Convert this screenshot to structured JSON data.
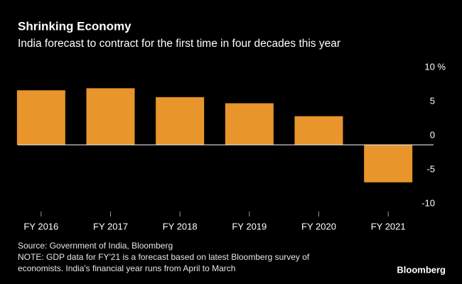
{
  "chart_data": {
    "type": "bar",
    "title": "Shrinking Economy",
    "subtitle": "India forecast to contract for the first time in four decades this year",
    "categories": [
      "FY 2016",
      "FY 2017",
      "FY 2018",
      "FY 2019",
      "FY 2020",
      "FY 2021"
    ],
    "values": [
      8.0,
      8.3,
      7.0,
      6.1,
      4.2,
      -5.5
    ],
    "color": "#e8952b",
    "ylim": [
      -10,
      10
    ],
    "yticks": [
      {
        "value": 10,
        "label": "10 %"
      },
      5,
      0,
      -5,
      -10
    ],
    "source": "Source: Government of India, Bloomberg",
    "note": [
      "NOTE: GDP data for FY'21 is a forecast based on latest Bloomberg survey of",
      "economists. India's financial year runs from April to March"
    ],
    "brand": "Bloomberg"
  }
}
